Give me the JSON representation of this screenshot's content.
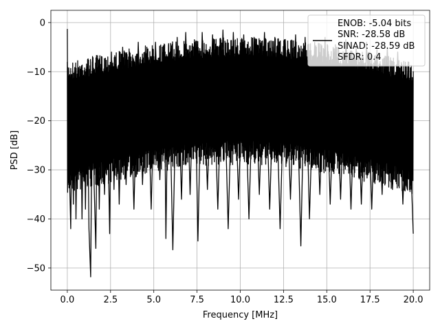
{
  "chart_data": {
    "type": "line",
    "xlabel": "Frequency [MHz]",
    "ylabel": "PSD [dB]",
    "xlim": [
      -0.95,
      20.95
    ],
    "ylim": [
      -54.5,
      2.5
    ],
    "x_ticks": [
      0.0,
      2.5,
      5.0,
      7.5,
      10.0,
      12.5,
      15.0,
      17.5,
      20.0
    ],
    "x_tick_labels": [
      "0.0",
      "2.5",
      "5.0",
      "7.5",
      "10.0",
      "12.5",
      "15.0",
      "17.5",
      "20.0"
    ],
    "y_ticks": [
      0,
      -10,
      -20,
      -30,
      -40,
      -50
    ],
    "y_tick_labels": [
      "0",
      "−10",
      "−20",
      "−30",
      "−40",
      "−50"
    ],
    "grid": true,
    "legend_position": "top-right",
    "legend_lines": [
      "ENOB: -5.04 bits",
      "SNR: -28.58 dB",
      "SINAD: -28.59 dB",
      "SFDR: 0.4"
    ],
    "series_color": "#000000",
    "noise_floor": {
      "upper_envelope_db": [
        -8,
        -3
      ],
      "lower_envelope_db": [
        -30,
        -24
      ]
    },
    "series": [
      {
        "x": [
          0.0,
          0.04,
          0.08,
          0.12,
          0.2,
          0.28,
          0.35,
          0.42,
          0.5,
          0.6,
          0.68,
          0.75,
          0.85,
          0.95,
          1.05,
          1.15,
          1.25,
          1.35,
          1.45,
          1.55,
          1.65,
          1.75,
          1.85,
          2.0,
          2.15,
          2.3,
          2.45,
          2.55,
          2.7,
          2.85,
          3.0,
          3.2,
          3.4,
          3.6,
          3.85,
          4.1,
          4.35,
          4.6,
          4.85,
          5.1,
          5.35,
          5.6,
          5.7,
          5.85,
          6.1,
          6.35,
          6.6,
          6.85,
          7.1,
          7.35,
          7.55,
          7.8,
          8.1,
          8.4,
          8.7,
          9.0,
          9.3,
          9.6,
          9.9,
          10.2,
          10.5,
          10.8,
          11.1,
          11.4,
          11.7,
          12.0,
          12.3,
          12.6,
          12.9,
          13.2,
          13.5,
          13.75,
          14.0,
          14.3,
          14.6,
          14.9,
          15.2,
          15.5,
          15.8,
          16.1,
          16.4,
          16.7,
          17.0,
          17.3,
          17.6,
          17.9,
          18.2,
          18.5,
          18.8,
          19.1,
          19.4,
          19.7,
          19.9,
          20.0
        ],
        "y": [
          -1.3,
          -33.0,
          -12.0,
          -30.0,
          -42.0,
          -15.0,
          -37.0,
          -10.0,
          -40.0,
          -14.0,
          -30.0,
          -9.5,
          -40.0,
          -12.0,
          -38.0,
          -9.0,
          -42.0,
          -51.8,
          -8.0,
          -33.0,
          -46.0,
          -10.0,
          -38.0,
          -7.0,
          -35.0,
          -12.0,
          -43.0,
          -6.0,
          -34.0,
          -9.0,
          -37.0,
          -5.0,
          -33.0,
          -6.0,
          -38.0,
          -4.0,
          -33.0,
          -5.0,
          -38.0,
          -4.0,
          -32.0,
          -5.0,
          -44.0,
          -4.5,
          -46.3,
          -3.0,
          -36.0,
          -2.0,
          -35.0,
          -3.5,
          -44.5,
          -2.0,
          -34.0,
          -2.5,
          -38.0,
          -1.5,
          -42.0,
          -2.0,
          -36.0,
          -2.5,
          -40.0,
          -3.0,
          -35.0,
          -2.0,
          -38.0,
          -3.0,
          -42.0,
          -3.5,
          -36.0,
          -2.5,
          -45.5,
          -3.0,
          -40.0,
          -4.0,
          -35.0,
          -3.0,
          -37.0,
          -4.5,
          -36.0,
          -3.5,
          -38.0,
          -5.0,
          -37.0,
          -4.0,
          -38.0,
          -5.5,
          -35.0,
          -5.0,
          -34.0,
          -6.0,
          -37.0,
          -8.0,
          -33.0,
          -43.0
        ]
      }
    ]
  }
}
